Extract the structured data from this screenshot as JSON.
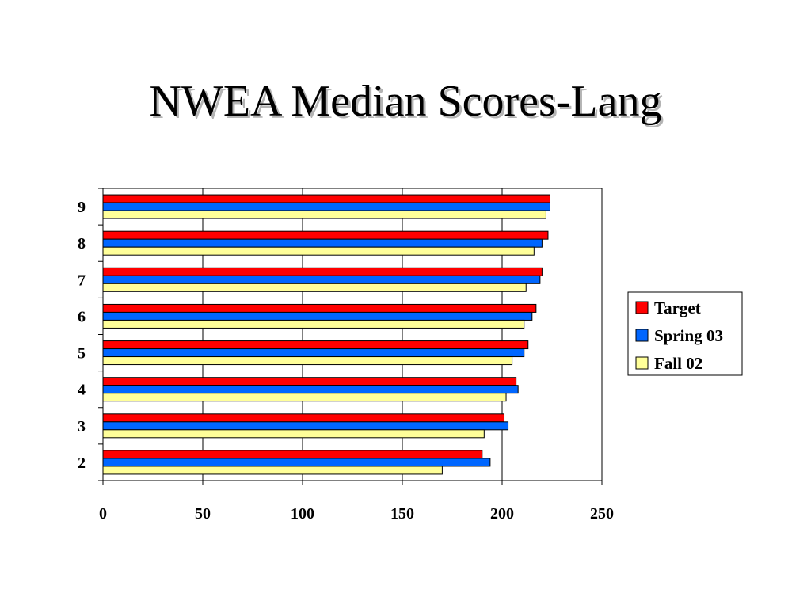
{
  "slide": {
    "title": "NWEA Median Scores-Lang"
  },
  "chart_data": {
    "type": "bar",
    "orientation": "horizontal",
    "categories": [
      "9",
      "8",
      "7",
      "6",
      "5",
      "4",
      "3",
      "2"
    ],
    "series": [
      {
        "name": "Target",
        "color": "#ff0000",
        "values": [
          224,
          223,
          220,
          217,
          213,
          207,
          201,
          190
        ]
      },
      {
        "name": "Spring 03",
        "color": "#0066ff",
        "values": [
          224,
          220,
          219,
          215,
          211,
          208,
          203,
          194
        ]
      },
      {
        "name": "Fall 02",
        "color": "#ffff99",
        "values": [
          222,
          216,
          212,
          211,
          205,
          202,
          191,
          170
        ]
      }
    ],
    "xlim": [
      0,
      250
    ],
    "xticks": [
      0,
      50,
      100,
      150,
      200,
      250
    ],
    "xtick_labels": [
      "0",
      "50",
      "100",
      "150",
      "200",
      "250"
    ],
    "xlabel": "",
    "ylabel": "",
    "grid": "vertical",
    "legend": {
      "position": "right",
      "entries": [
        "Target",
        "Spring 03",
        "Fall 02"
      ]
    }
  }
}
